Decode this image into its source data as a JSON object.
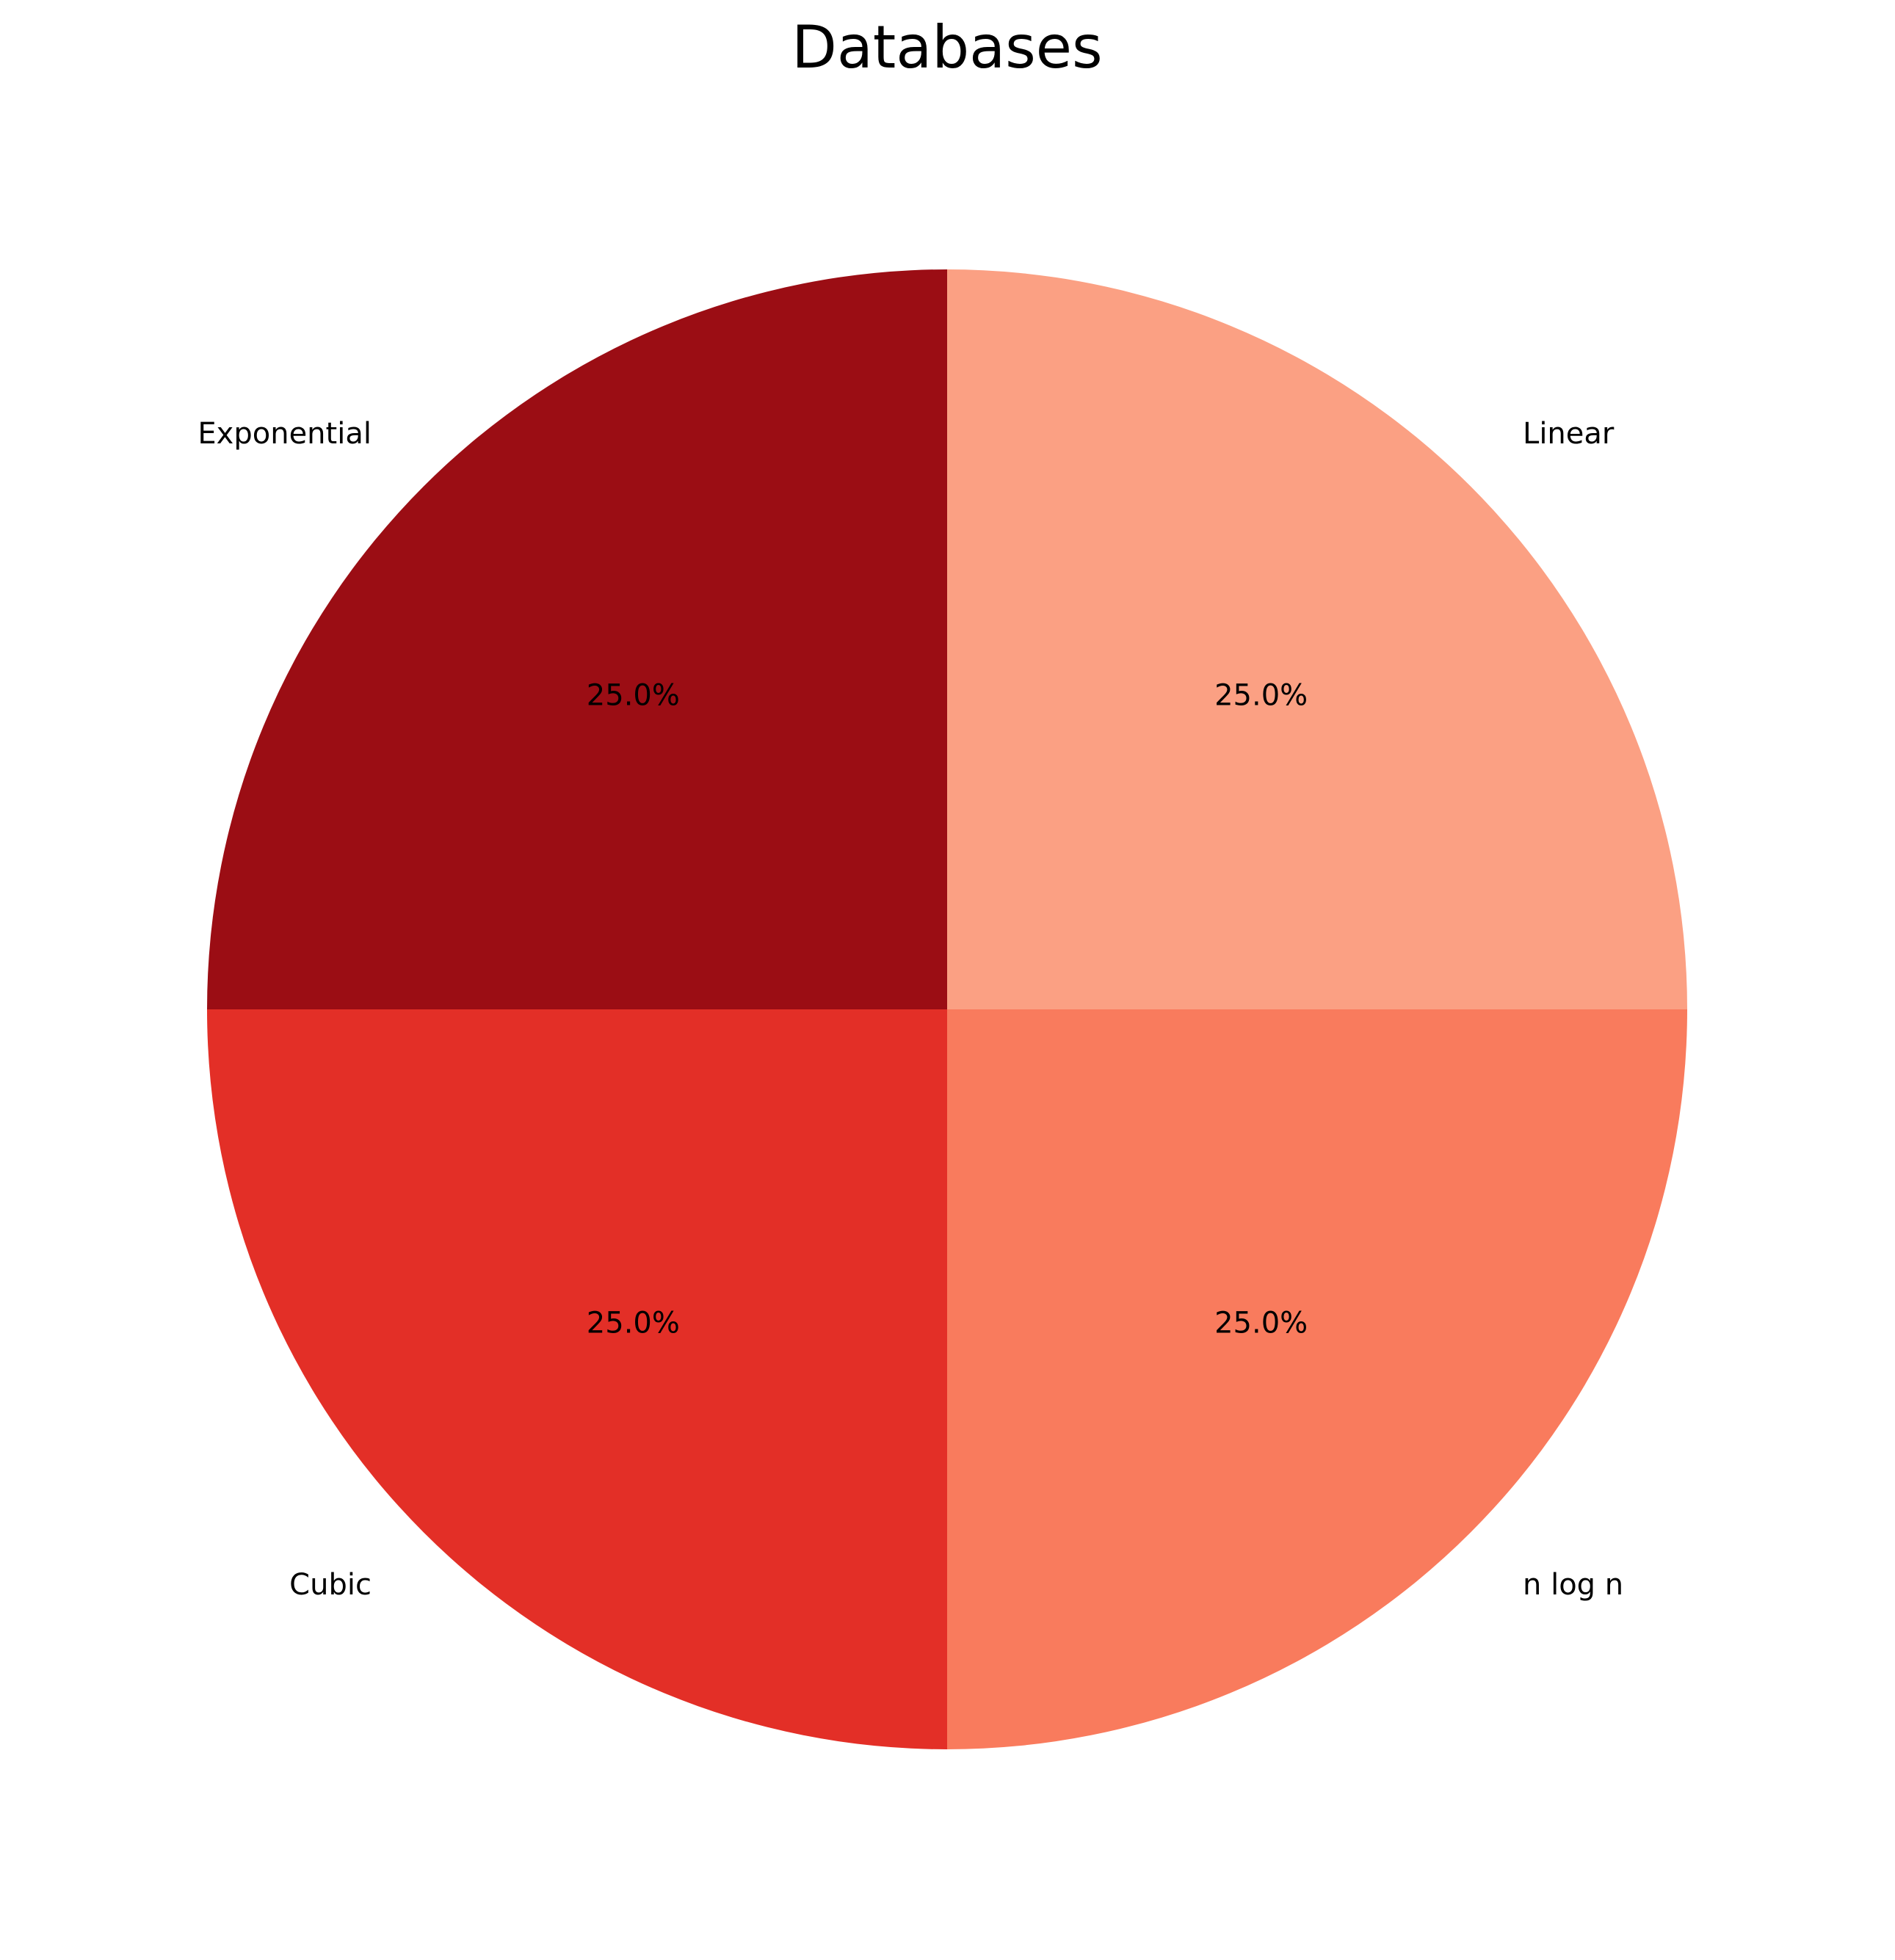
{
  "chart_data": {
    "type": "pie",
    "title": "Databases",
    "labels": [
      "Linear",
      "Exponential",
      "Cubic",
      "n log n"
    ],
    "values": [
      25,
      25,
      25,
      25
    ],
    "percent_labels": [
      "25.0%",
      "25.0%",
      "25.0%",
      "25.0%"
    ],
    "colors": [
      "#fba083",
      "#9b0d14",
      "#e32f27",
      "#f97b5d"
    ],
    "start_angle_deg": 0,
    "direction": "counterclockwise"
  }
}
